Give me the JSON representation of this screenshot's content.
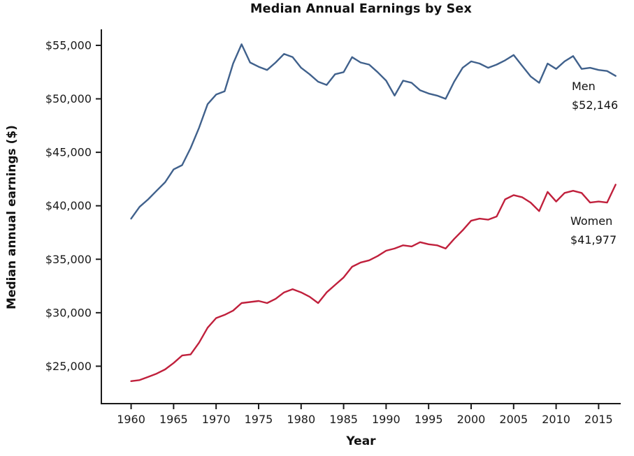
{
  "title": "Median Annual Earnings by Sex",
  "colors": {
    "men_line": "#40618c",
    "women_line": "#c0203c",
    "axis": "#1a1a1a",
    "background": "#ffffff"
  },
  "chart_data": {
    "type": "line",
    "title": "Median Annual Earnings by Sex",
    "xlabel": "Year",
    "ylabel": "Median annual earnings ($)",
    "grid": false,
    "legend": "none - direct line labels at right",
    "x_range": [
      1956.5,
      2017.6
    ],
    "y_range": [
      21500,
      56500
    ],
    "x_ticks": [
      1960,
      1965,
      1970,
      1975,
      1980,
      1985,
      1990,
      1995,
      2000,
      2005,
      2010,
      2015
    ],
    "x_tick_labels": [
      "1960",
      "1965",
      "1970",
      "1975",
      "1980",
      "1985",
      "1990",
      "1995",
      "2000",
      "2005",
      "2010",
      "2015"
    ],
    "y_ticks": [
      25000,
      30000,
      35000,
      40000,
      45000,
      50000,
      55000
    ],
    "y_tick_labels": [
      "$25,000",
      "$30,000",
      "$35,000",
      "$40,000",
      "$45,000",
      "$50,000",
      "$55,000"
    ],
    "x": [
      1960,
      1961,
      1962,
      1963,
      1964,
      1965,
      1966,
      1967,
      1968,
      1969,
      1970,
      1971,
      1972,
      1973,
      1974,
      1975,
      1976,
      1977,
      1978,
      1979,
      1980,
      1981,
      1982,
      1983,
      1984,
      1985,
      1986,
      1987,
      1988,
      1989,
      1990,
      1991,
      1992,
      1993,
      1994,
      1995,
      1996,
      1997,
      1998,
      1999,
      2000,
      2001,
      2002,
      2003,
      2004,
      2005,
      2006,
      2007,
      2008,
      2009,
      2010,
      2011,
      2012,
      2013,
      2014,
      2015,
      2016,
      2017
    ],
    "series": [
      {
        "name": "Men",
        "color": "#40618c",
        "final_value": 52146,
        "values": [
          38800,
          39900,
          40600,
          41400,
          42200,
          43400,
          43800,
          45400,
          47300,
          49500,
          50400,
          50700,
          53300,
          55100,
          53400,
          53000,
          52700,
          53400,
          54200,
          53900,
          52900,
          52300,
          51600,
          51300,
          52300,
          52500,
          53900,
          53400,
          53200,
          52500,
          51700,
          50300,
          51700,
          51500,
          50800,
          50500,
          50300,
          50000,
          51600,
          52900,
          53500,
          53300,
          52900,
          53200,
          53600,
          54100,
          53100,
          52100,
          51500,
          53300,
          52800,
          53500,
          54000,
          52800,
          52900,
          52700,
          52600,
          52146
        ]
      },
      {
        "name": "Women",
        "color": "#c0203c",
        "final_value": 41977,
        "values": [
          23600,
          23700,
          24000,
          24300,
          24700,
          25300,
          26000,
          26100,
          27200,
          28600,
          29500,
          29800,
          30200,
          30900,
          31000,
          31100,
          30900,
          31300,
          31900,
          32200,
          31900,
          31500,
          30900,
          31900,
          32600,
          33300,
          34300,
          34700,
          34900,
          35300,
          35800,
          36000,
          36300,
          36200,
          36600,
          36400,
          36300,
          36000,
          36900,
          37700,
          38600,
          38800,
          38700,
          39000,
          40600,
          41000,
          40800,
          40300,
          39500,
          41300,
          40400,
          41200,
          41400,
          41200,
          40300,
          40400,
          40300,
          41977
        ]
      }
    ],
    "annotations": [
      {
        "series": "Men",
        "lines": [
          "Men",
          "$52,146"
        ]
      },
      {
        "series": "Women",
        "lines": [
          "Women",
          "$41,977"
        ]
      }
    ]
  }
}
